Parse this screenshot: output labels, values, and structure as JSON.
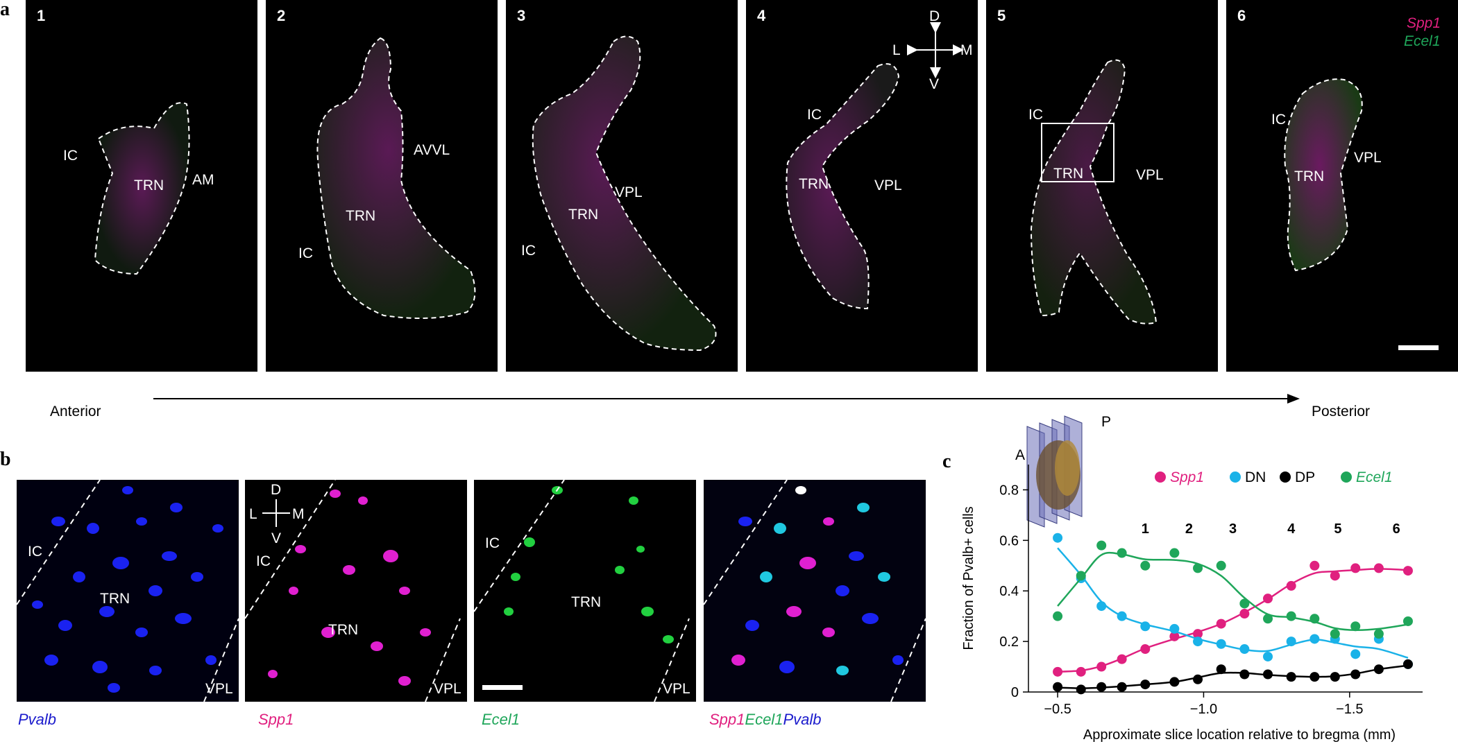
{
  "panel_a": {
    "letter": "a",
    "slices": [
      {
        "num": "1",
        "labels": [
          "IC",
          "TRN",
          "AM"
        ]
      },
      {
        "num": "2",
        "labels": [
          "AVVL",
          "TRN",
          "IC"
        ]
      },
      {
        "num": "3",
        "labels": [
          "VPL",
          "TRN",
          "IC"
        ]
      },
      {
        "num": "4",
        "labels": [
          "IC",
          "TRN",
          "VPL"
        ]
      },
      {
        "num": "5",
        "labels": [
          "IC",
          "TRN",
          "VPL"
        ]
      },
      {
        "num": "6",
        "labels": [
          "IC",
          "TRN",
          "VPL"
        ]
      }
    ],
    "compass": {
      "d": "D",
      "v": "V",
      "l": "L",
      "m": "M"
    },
    "legend": {
      "spp1": "Spp1",
      "ecel1": "Ecel1"
    },
    "axis": {
      "left": "Anterior",
      "right": "Posterior"
    }
  },
  "panel_b": {
    "letter": "b",
    "images": [
      {
        "caption": "Pvalb",
        "ic": "IC",
        "trn": "TRN",
        "vpl": "VPL"
      },
      {
        "caption": "Spp1",
        "ic": "IC",
        "trn": "TRN",
        "vpl": "VPL"
      },
      {
        "caption": "Ecel1",
        "ic": "IC",
        "trn": "TRN",
        "vpl": "VPL"
      },
      {
        "caption_parts": [
          "Spp1",
          "Ecel1",
          "Pvalb"
        ]
      }
    ],
    "compass": {
      "d": "D",
      "v": "V",
      "l": "L",
      "m": "M"
    }
  },
  "panel_c": {
    "letter": "c",
    "inset": {
      "a": "A",
      "p": "P"
    }
  },
  "colors": {
    "spp1": "#e0207f",
    "dn": "#1ab2e8",
    "dp": "#000000",
    "ecel1": "#1fa65a",
    "pvalb": "#1a1acc",
    "ecel1_text": "#1fa65a",
    "spp1_text": "#e0207f"
  },
  "chart_data": {
    "type": "scatter",
    "ylabel": "Fraction of Pvalb+ cells",
    "xlabel": "Approximate slice location relative to bregma (mm)",
    "xlim": [
      -0.4,
      -1.75
    ],
    "ylim": [
      0,
      0.9
    ],
    "x_ticks": [
      "−0.5",
      "−1.0",
      "−1.5"
    ],
    "x_tick_values": [
      -0.5,
      -1.0,
      -1.5
    ],
    "y_ticks": [
      "0",
      "0.2",
      "0.4",
      "0.6",
      "0.8"
    ],
    "y_tick_values": [
      0,
      0.2,
      0.4,
      0.6,
      0.8
    ],
    "slice_markers": [
      {
        "label": "1",
        "x": -0.8
      },
      {
        "label": "2",
        "x": -0.95
      },
      {
        "label": "3",
        "x": -1.1
      },
      {
        "label": "4",
        "x": -1.3
      },
      {
        "label": "5",
        "x": -1.46
      },
      {
        "label": "6",
        "x": -1.66
      }
    ],
    "legend": [
      "Spp1",
      "DN",
      "DP",
      "Ecel1"
    ],
    "series": [
      {
        "name": "Spp1",
        "x": [
          -0.5,
          -0.58,
          -0.65,
          -0.72,
          -0.8,
          -0.9,
          -0.98,
          -1.06,
          -1.14,
          -1.22,
          -1.3,
          -1.38,
          -1.45,
          -1.52,
          -1.6,
          -1.7
        ],
        "y": [
          0.08,
          0.08,
          0.1,
          0.13,
          0.17,
          0.22,
          0.23,
          0.27,
          0.31,
          0.37,
          0.42,
          0.5,
          0.46,
          0.49,
          0.49,
          0.48
        ]
      },
      {
        "name": "DN",
        "x": [
          -0.5,
          -0.58,
          -0.65,
          -0.72,
          -0.8,
          -0.9,
          -0.98,
          -1.06,
          -1.14,
          -1.22,
          -1.3,
          -1.38,
          -1.45,
          -1.52,
          -1.6,
          -1.7
        ],
        "y": [
          0.61,
          0.45,
          0.34,
          0.3,
          0.26,
          0.25,
          0.2,
          0.19,
          0.17,
          0.14,
          0.2,
          0.21,
          0.21,
          0.15,
          0.21,
          0.11
        ]
      },
      {
        "name": "DP",
        "x": [
          -0.5,
          -0.58,
          -0.65,
          -0.72,
          -0.8,
          -0.9,
          -0.98,
          -1.06,
          -1.14,
          -1.22,
          -1.3,
          -1.38,
          -1.45,
          -1.52,
          -1.6,
          -1.7
        ],
        "y": [
          0.02,
          0.01,
          0.02,
          0.02,
          0.03,
          0.04,
          0.05,
          0.09,
          0.07,
          0.07,
          0.06,
          0.06,
          0.06,
          0.07,
          0.09,
          0.11
        ]
      },
      {
        "name": "Ecel1",
        "x": [
          -0.5,
          -0.58,
          -0.65,
          -0.72,
          -0.8,
          -0.9,
          -0.98,
          -1.06,
          -1.14,
          -1.22,
          -1.3,
          -1.38,
          -1.45,
          -1.52,
          -1.6,
          -1.7
        ],
        "y": [
          0.3,
          0.46,
          0.58,
          0.55,
          0.5,
          0.55,
          0.49,
          0.5,
          0.35,
          0.29,
          0.3,
          0.29,
          0.23,
          0.26,
          0.23,
          0.28
        ]
      }
    ]
  }
}
